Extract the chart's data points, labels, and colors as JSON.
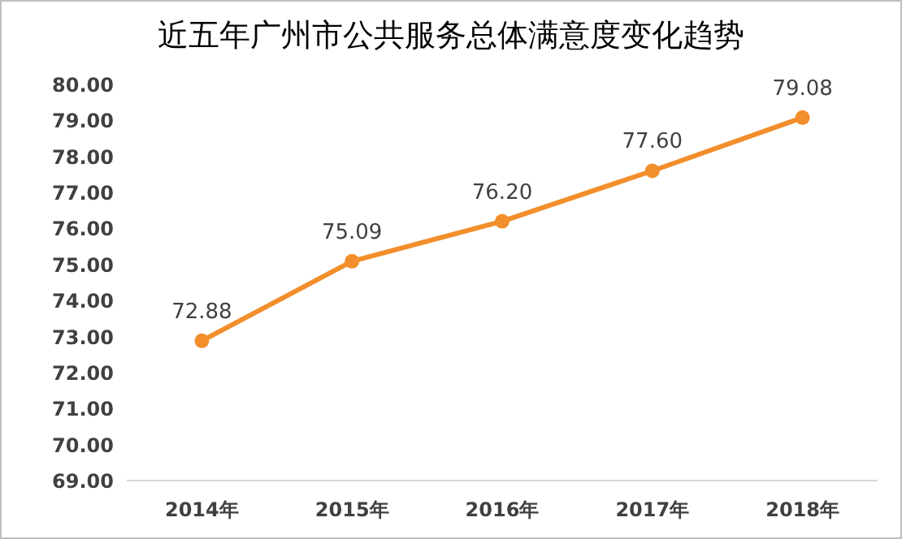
{
  "chart_data": {
    "type": "line",
    "title": "近五年广州市公共服务总体满意度变化趋势",
    "categories": [
      "2014年",
      "2015年",
      "2016年",
      "2017年",
      "2018年"
    ],
    "values": [
      72.88,
      75.09,
      76.2,
      77.6,
      79.08
    ],
    "value_labels": [
      "72.88",
      "75.09",
      "76.20",
      "77.60",
      "79.08"
    ],
    "color": "#f28e2b",
    "marker": "circle",
    "line_style": "solid",
    "ylim": [
      69,
      80
    ],
    "yticks": [
      {
        "value": 69,
        "label": "69.00"
      },
      {
        "value": 70,
        "label": "70.00"
      },
      {
        "value": 71,
        "label": "71.00"
      },
      {
        "value": 72,
        "label": "72.00"
      },
      {
        "value": 73,
        "label": "73.00"
      },
      {
        "value": 74,
        "label": "74.00"
      },
      {
        "value": 75,
        "label": "75.00"
      },
      {
        "value": 76,
        "label": "76.00"
      },
      {
        "value": 77,
        "label": "77.00"
      },
      {
        "value": 78,
        "label": "78.00"
      },
      {
        "value": 79,
        "label": "79.00"
      },
      {
        "value": 80,
        "label": "80.00"
      }
    ]
  }
}
